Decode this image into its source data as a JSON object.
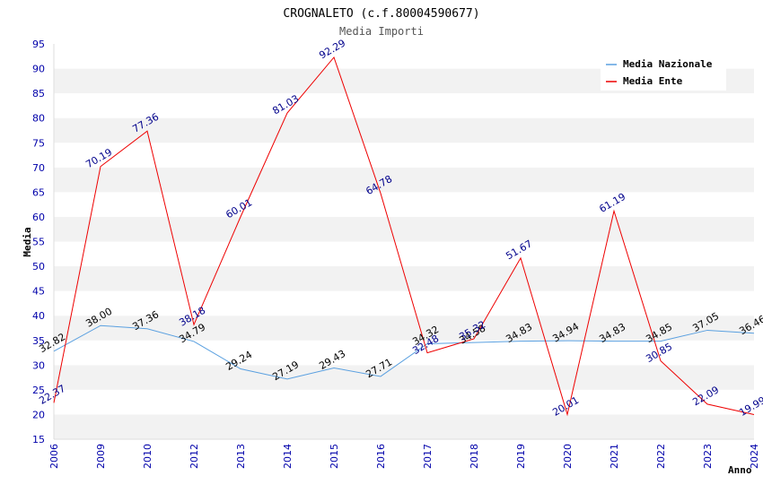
{
  "chart_data": {
    "type": "line",
    "title": "CROGNALETO (c.f.80004590677)",
    "subtitle": "Media Importi",
    "xlabel": "Anno",
    "ylabel": "Media",
    "categories": [
      "2006",
      "2009",
      "2010",
      "2012",
      "2013",
      "2014",
      "2015",
      "2016",
      "2017",
      "2018",
      "2019",
      "2020",
      "2021",
      "2022",
      "2023",
      "2024"
    ],
    "ylim": [
      15,
      95
    ],
    "yticks": [
      15,
      20,
      25,
      30,
      35,
      40,
      45,
      50,
      55,
      60,
      65,
      70,
      75,
      80,
      85,
      90,
      95
    ],
    "series": [
      {
        "name": "Media Nazionale",
        "color": "#5aa0e0",
        "label_color": "#000000",
        "values": [
          32.82,
          38.0,
          37.36,
          34.79,
          29.24,
          27.19,
          29.43,
          27.71,
          34.32,
          34.58,
          34.83,
          34.94,
          34.83,
          34.85,
          37.05,
          36.46
        ],
        "labels": [
          "32.82",
          "38.00",
          "37.36",
          "34.79",
          "29.24",
          "27.19",
          "29.43",
          "27.71",
          "34.32",
          "34.58",
          "34.83",
          "34.94",
          "34.83",
          "34.85",
          "37.05",
          "36.46"
        ]
      },
      {
        "name": "Media Ente",
        "color": "#ee0000",
        "label_color": "#00008b",
        "values": [
          22.37,
          70.19,
          77.36,
          38.18,
          60.01,
          81.03,
          92.29,
          64.78,
          32.48,
          35.32,
          51.67,
          20.01,
          61.19,
          30.85,
          22.09,
          19.99
        ],
        "labels": [
          "22.37",
          "70.19",
          "77.36",
          "38.18",
          "60.01",
          "81.03",
          "92.29",
          "64.78",
          "32.48",
          "35.32",
          "51.67",
          "20.01",
          "61.19",
          "30.85",
          "22.09",
          "19.99"
        ]
      }
    ],
    "legend": {
      "position": "top-right"
    },
    "grid": true
  }
}
